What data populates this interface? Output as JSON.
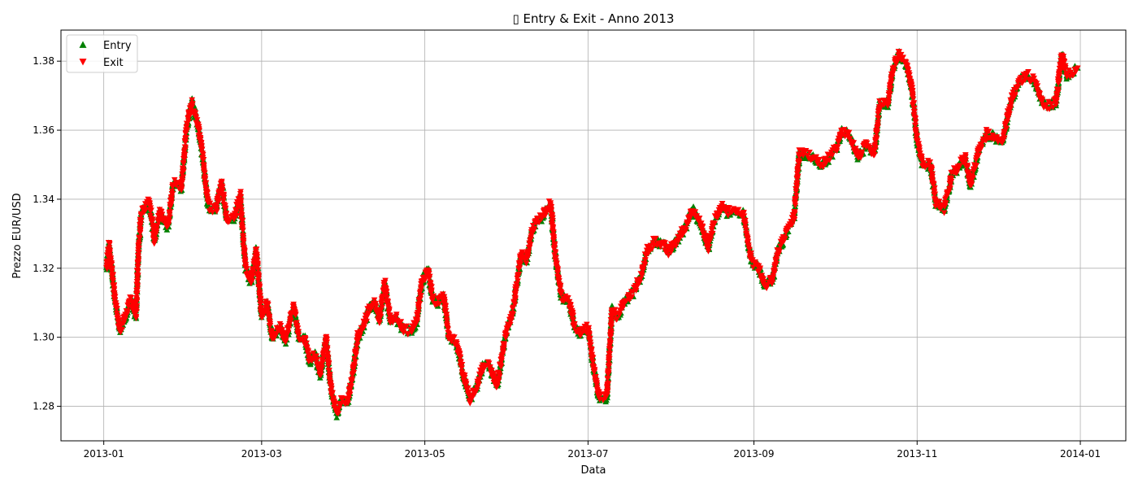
{
  "chart_data": {
    "type": "scatter",
    "title": "▯ Entry & Exit - Anno 2013",
    "xlabel": "Data",
    "ylabel": "Prezzo EUR/USD",
    "x_type": "date",
    "xlim": [
      "2012-12-16",
      "2014-01-18"
    ],
    "ylim": [
      1.27,
      1.389
    ],
    "x_ticks": [
      "2013-01-01",
      "2013-03-01",
      "2013-05-01",
      "2013-07-01",
      "2013-09-01",
      "2013-11-01",
      "2014-01-01"
    ],
    "x_tick_labels": [
      "2013-01",
      "2013-03",
      "2013-05",
      "2013-07",
      "2013-09",
      "2013-11",
      "2014-01"
    ],
    "y_ticks": [
      1.28,
      1.3,
      1.32,
      1.34,
      1.36,
      1.38
    ],
    "y_tick_labels": [
      "1.28",
      "1.30",
      "1.32",
      "1.34",
      "1.36",
      "1.38"
    ],
    "grid": true,
    "legend_position": "top-left",
    "series": [
      {
        "name": "Entry",
        "marker": "triangle-up",
        "color": "#008000"
      },
      {
        "name": "Exit",
        "marker": "triangle-down",
        "color": "#ff0000"
      }
    ],
    "price_path": [
      [
        "2013-01-02",
        1.32
      ],
      [
        "2013-01-03",
        1.327
      ],
      [
        "2013-01-05",
        1.312
      ],
      [
        "2013-01-07",
        1.302
      ],
      [
        "2013-01-09",
        1.306
      ],
      [
        "2013-01-11",
        1.311
      ],
      [
        "2013-01-13",
        1.306
      ],
      [
        "2013-01-14",
        1.325
      ],
      [
        "2013-01-15",
        1.336
      ],
      [
        "2013-01-18",
        1.339
      ],
      [
        "2013-01-20",
        1.328
      ],
      [
        "2013-01-22",
        1.336
      ],
      [
        "2013-01-25",
        1.332
      ],
      [
        "2013-01-27",
        1.345
      ],
      [
        "2013-01-30",
        1.343
      ],
      [
        "2013-02-01",
        1.361
      ],
      [
        "2013-02-03",
        1.368
      ],
      [
        "2013-02-05",
        1.362
      ],
      [
        "2013-02-07",
        1.352
      ],
      [
        "2013-02-09",
        1.338
      ],
      [
        "2013-02-12",
        1.337
      ],
      [
        "2013-02-14",
        1.345
      ],
      [
        "2013-02-16",
        1.334
      ],
      [
        "2013-02-19",
        1.335
      ],
      [
        "2013-02-21",
        1.341
      ],
      [
        "2013-02-23",
        1.32
      ],
      [
        "2013-02-25",
        1.316
      ],
      [
        "2013-02-27",
        1.325
      ],
      [
        "2013-03-01",
        1.306
      ],
      [
        "2013-03-03",
        1.31
      ],
      [
        "2013-03-05",
        1.3
      ],
      [
        "2013-03-08",
        1.303
      ],
      [
        "2013-03-10",
        1.299
      ],
      [
        "2013-03-13",
        1.309
      ],
      [
        "2013-03-15",
        1.3
      ],
      [
        "2013-03-17",
        1.3
      ],
      [
        "2013-03-19",
        1.293
      ],
      [
        "2013-03-21",
        1.295
      ],
      [
        "2013-03-23",
        1.289
      ],
      [
        "2013-03-25",
        1.3
      ],
      [
        "2013-03-27",
        1.285
      ],
      [
        "2013-03-29",
        1.278
      ],
      [
        "2013-03-31",
        1.282
      ],
      [
        "2013-04-02",
        1.281
      ],
      [
        "2013-04-04",
        1.289
      ],
      [
        "2013-04-06",
        1.3
      ],
      [
        "2013-04-08",
        1.303
      ],
      [
        "2013-04-10",
        1.308
      ],
      [
        "2013-04-12",
        1.31
      ],
      [
        "2013-04-14",
        1.305
      ],
      [
        "2013-04-16",
        1.316
      ],
      [
        "2013-04-18",
        1.305
      ],
      [
        "2013-04-20",
        1.306
      ],
      [
        "2013-04-23",
        1.302
      ],
      [
        "2013-04-26",
        1.302
      ],
      [
        "2013-04-28",
        1.305
      ],
      [
        "2013-04-30",
        1.316
      ],
      [
        "2013-05-02",
        1.32
      ],
      [
        "2013-05-04",
        1.311
      ],
      [
        "2013-05-06",
        1.31
      ],
      [
        "2013-05-08",
        1.312
      ],
      [
        "2013-05-10",
        1.3
      ],
      [
        "2013-05-13",
        1.298
      ],
      [
        "2013-05-16",
        1.287
      ],
      [
        "2013-05-18",
        1.282
      ],
      [
        "2013-05-20",
        1.285
      ],
      [
        "2013-05-23",
        1.292
      ],
      [
        "2013-05-25",
        1.292
      ],
      [
        "2013-05-28",
        1.286
      ],
      [
        "2013-05-31",
        1.3
      ],
      [
        "2013-06-03",
        1.308
      ],
      [
        "2013-06-06",
        1.324
      ],
      [
        "2013-06-08",
        1.322
      ],
      [
        "2013-06-10",
        1.331
      ],
      [
        "2013-06-12",
        1.334
      ],
      [
        "2013-06-14",
        1.335
      ],
      [
        "2013-06-17",
        1.339
      ],
      [
        "2013-06-19",
        1.322
      ],
      [
        "2013-06-21",
        1.312
      ],
      [
        "2013-06-24",
        1.31
      ],
      [
        "2013-06-26",
        1.303
      ],
      [
        "2013-06-28",
        1.301
      ],
      [
        "2013-07-01",
        1.303
      ],
      [
        "2013-07-03",
        1.292
      ],
      [
        "2013-07-05",
        1.283
      ],
      [
        "2013-07-08",
        1.282
      ],
      [
        "2013-07-10",
        1.308
      ],
      [
        "2013-07-12",
        1.306
      ],
      [
        "2013-07-15",
        1.311
      ],
      [
        "2013-07-18",
        1.313
      ],
      [
        "2013-07-21",
        1.318
      ],
      [
        "2013-07-23",
        1.325
      ],
      [
        "2013-07-26",
        1.328
      ],
      [
        "2013-07-29",
        1.327
      ],
      [
        "2013-07-31",
        1.325
      ],
      [
        "2013-08-03",
        1.328
      ],
      [
        "2013-08-06",
        1.331
      ],
      [
        "2013-08-09",
        1.337
      ],
      [
        "2013-08-12",
        1.333
      ],
      [
        "2013-08-15",
        1.326
      ],
      [
        "2013-08-17",
        1.333
      ],
      [
        "2013-08-20",
        1.338
      ],
      [
        "2013-08-22",
        1.336
      ],
      [
        "2013-08-25",
        1.337
      ],
      [
        "2013-08-28",
        1.336
      ],
      [
        "2013-08-31",
        1.322
      ],
      [
        "2013-09-03",
        1.32
      ],
      [
        "2013-09-05",
        1.315
      ],
      [
        "2013-09-08",
        1.317
      ],
      [
        "2013-09-10",
        1.325
      ],
      [
        "2013-09-13",
        1.33
      ],
      [
        "2013-09-16",
        1.335
      ],
      [
        "2013-09-18",
        1.353
      ],
      [
        "2013-09-20",
        1.353
      ],
      [
        "2013-09-23",
        1.352
      ],
      [
        "2013-09-26",
        1.35
      ],
      [
        "2013-09-29",
        1.352
      ],
      [
        "2013-10-02",
        1.355
      ],
      [
        "2013-10-04",
        1.36
      ],
      [
        "2013-10-07",
        1.358
      ],
      [
        "2013-10-10",
        1.352
      ],
      [
        "2013-10-13",
        1.356
      ],
      [
        "2013-10-16",
        1.353
      ],
      [
        "2013-10-18",
        1.368
      ],
      [
        "2013-10-21",
        1.367
      ],
      [
        "2013-10-23",
        1.378
      ],
      [
        "2013-10-25",
        1.382
      ],
      [
        "2013-10-28",
        1.379
      ],
      [
        "2013-10-30",
        1.372
      ],
      [
        "2013-11-01",
        1.357
      ],
      [
        "2013-11-03",
        1.35
      ],
      [
        "2013-11-06",
        1.35
      ],
      [
        "2013-11-08",
        1.339
      ],
      [
        "2013-11-11",
        1.337
      ],
      [
        "2013-11-14",
        1.347
      ],
      [
        "2013-11-17",
        1.35
      ],
      [
        "2013-11-19",
        1.352
      ],
      [
        "2013-11-21",
        1.344
      ],
      [
        "2013-11-24",
        1.354
      ],
      [
        "2013-11-27",
        1.359
      ],
      [
        "2013-11-30",
        1.358
      ],
      [
        "2013-12-03",
        1.357
      ],
      [
        "2013-12-06",
        1.368
      ],
      [
        "2013-12-09",
        1.374
      ],
      [
        "2013-12-12",
        1.376
      ],
      [
        "2013-12-15",
        1.374
      ],
      [
        "2013-12-18",
        1.368
      ],
      [
        "2013-12-20",
        1.367
      ],
      [
        "2013-12-23",
        1.368
      ],
      [
        "2013-12-25",
        1.382
      ],
      [
        "2013-12-27",
        1.376
      ],
      [
        "2013-12-31",
        1.378
      ]
    ]
  }
}
